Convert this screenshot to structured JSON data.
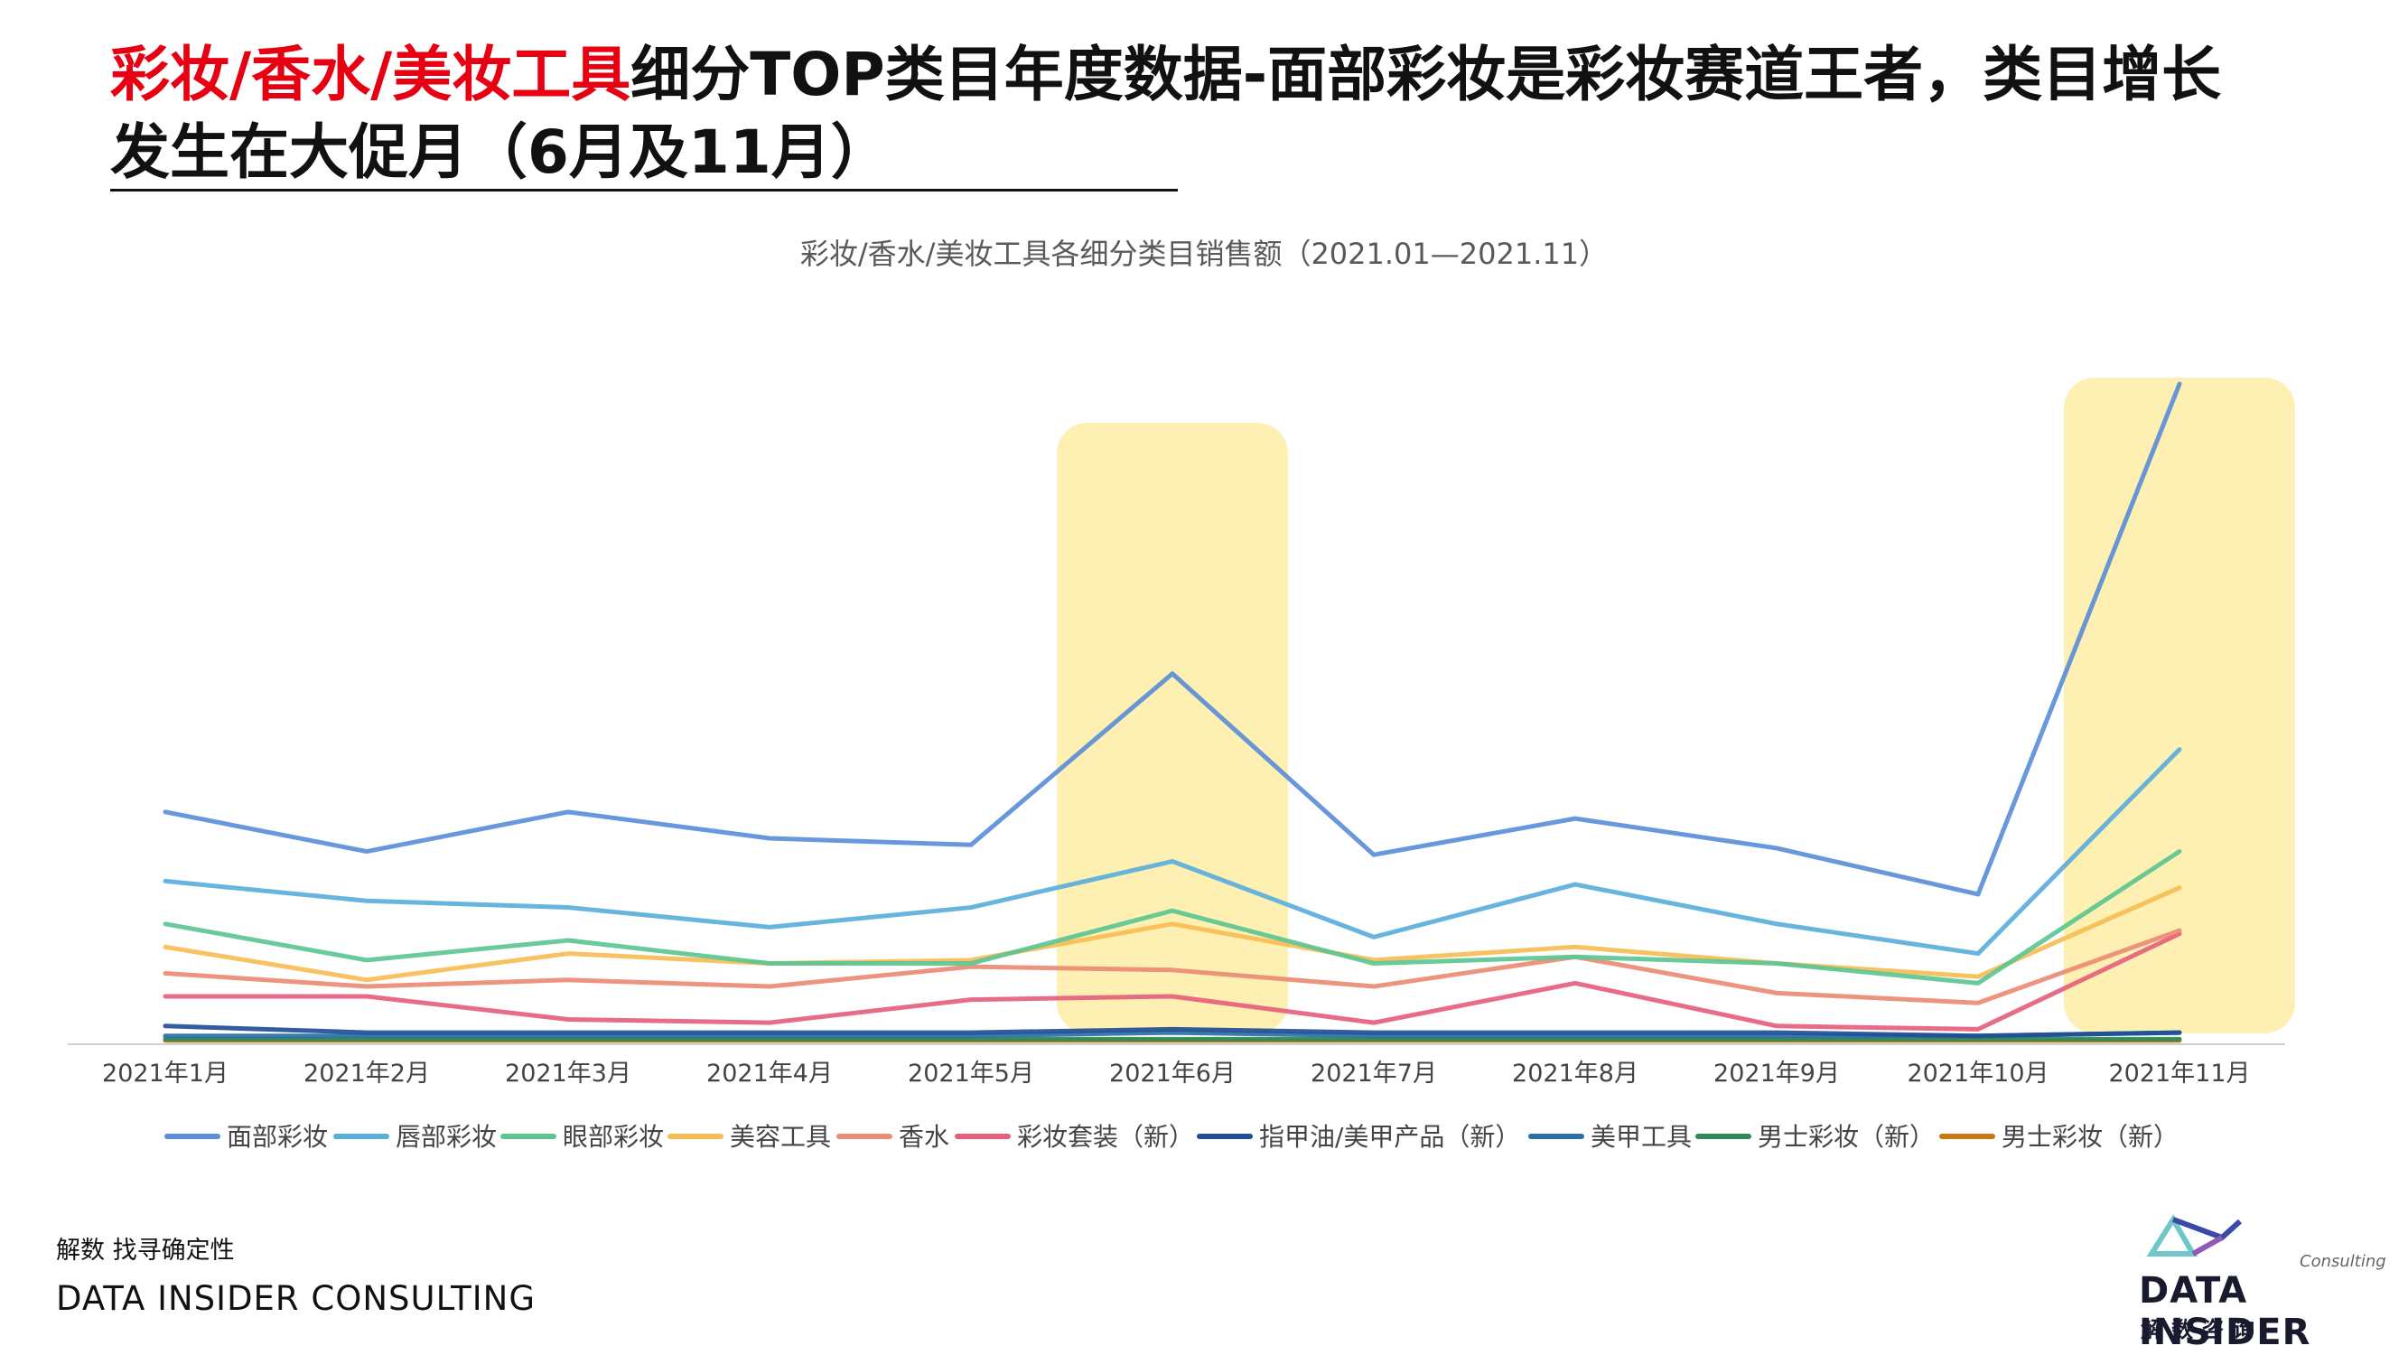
{
  "slide": {
    "title_highlight": "彩妆/香水/美妆工具",
    "title_rest": "细分TOP类目年度数据-面部彩妆是彩妆赛道王者，类目增长发生在大促月（6月及11月）",
    "footer_cn": "解数 找寻确定性",
    "footer_en": "DATA INSIDER CONSULTING",
    "logo_main": "DATA INSIDER",
    "logo_consult": "Consulting",
    "logo_cn": "解数咨询"
  },
  "chart_data": {
    "type": "line",
    "title": "彩妆/香水/美妆工具各细分类目销售额（2021.01—2021.11）",
    "categories": [
      "2021年1月",
      "2021年2月",
      "2021年3月",
      "2021年4月",
      "2021年5月",
      "2021年6月",
      "2021年7月",
      "2021年8月",
      "2021年9月",
      "2021年10月",
      "2021年11月"
    ],
    "ylim": [
      0,
      100
    ],
    "grid": false,
    "legend_position": "bottom",
    "highlighted_categories": [
      "2021年6月",
      "2021年11月"
    ],
    "highlight_color": "#fdf0b2",
    "series": [
      {
        "name": "面部彩妆",
        "color": "#5b8ed8",
        "values": [
          35.0,
          29.0,
          35.0,
          31.0,
          30.0,
          56.0,
          28.5,
          34.0,
          29.5,
          22.5,
          100.0
        ]
      },
      {
        "name": "唇部彩妆",
        "color": "#5aaedc",
        "values": [
          24.5,
          21.5,
          20.5,
          17.5,
          20.5,
          27.5,
          16.0,
          24.0,
          18.0,
          13.5,
          44.5
        ]
      },
      {
        "name": "眼部彩妆",
        "color": "#5cc693",
        "values": [
          18.0,
          12.5,
          15.5,
          12.0,
          12.0,
          20.0,
          12.0,
          13.0,
          12.0,
          9.0,
          29.0
        ]
      },
      {
        "name": "美容工具",
        "color": "#f7bd55",
        "values": [
          14.5,
          9.5,
          13.5,
          12.0,
          12.5,
          18.0,
          12.5,
          14.5,
          12.0,
          10.0,
          23.5
        ]
      },
      {
        "name": "香水",
        "color": "#ec8b74",
        "values": [
          10.5,
          8.5,
          9.5,
          8.5,
          11.5,
          11.0,
          8.5,
          13.0,
          7.5,
          6.0,
          17.0
        ]
      },
      {
        "name": "彩妆套装（新）",
        "color": "#e6607e",
        "values": [
          7.0,
          7.0,
          3.5,
          3.0,
          6.5,
          7.0,
          3.0,
          9.0,
          2.5,
          2.0,
          16.5
        ]
      },
      {
        "name": "指甲油/美甲产品（新）",
        "color": "#1f4e96",
        "values": [
          2.5,
          1.5,
          1.5,
          1.5,
          1.5,
          2.0,
          1.5,
          1.5,
          1.5,
          1.0,
          1.5
        ]
      },
      {
        "name": "美甲工具",
        "color": "#2a6fa6",
        "values": [
          1.0,
          1.0,
          1.0,
          1.0,
          1.0,
          1.5,
          1.0,
          1.0,
          1.0,
          1.0,
          1.5
        ]
      },
      {
        "name": "男士彩妆（新）",
        "color": "#2e8a57",
        "values": [
          0.5,
          0.5,
          0.5,
          0.5,
          0.5,
          0.5,
          0.5,
          0.5,
          0.5,
          0.5,
          0.5
        ]
      },
      {
        "name": "男士彩妆（新）",
        "color": "#c8780f",
        "values": [
          0.3,
          0.3,
          0.3,
          0.3,
          0.3,
          0.3,
          0.3,
          0.3,
          0.3,
          0.3,
          0.3
        ]
      }
    ]
  }
}
